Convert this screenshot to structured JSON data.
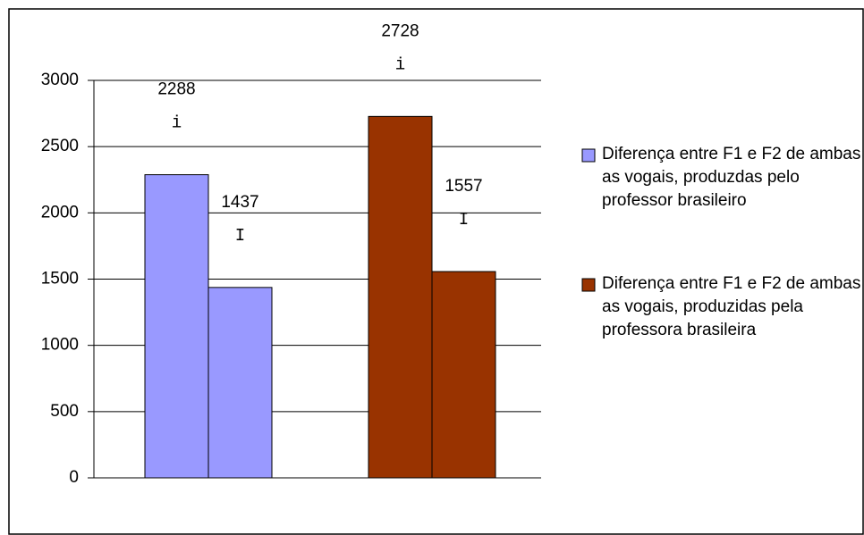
{
  "chart_data": {
    "type": "bar",
    "series": [
      {
        "name": "Diferença entre F1 e F2 de ambas as vogais, produzdas pelo professor brasileiro",
        "color": "#9999ff",
        "labels": [
          "i",
          "I"
        ],
        "values": [
          2288,
          1437
        ]
      },
      {
        "name": "Diferença entre F1 e F2 de ambas as vogais, produzidas pela professora brasileira",
        "color": "#993300",
        "labels": [
          "i",
          "I"
        ],
        "values": [
          2728,
          1557
        ]
      }
    ],
    "ylim": [
      0,
      3000
    ],
    "yticks": [
      0,
      500,
      1000,
      1500,
      2000,
      2500,
      3000
    ],
    "grid": true,
    "legend": "right"
  }
}
